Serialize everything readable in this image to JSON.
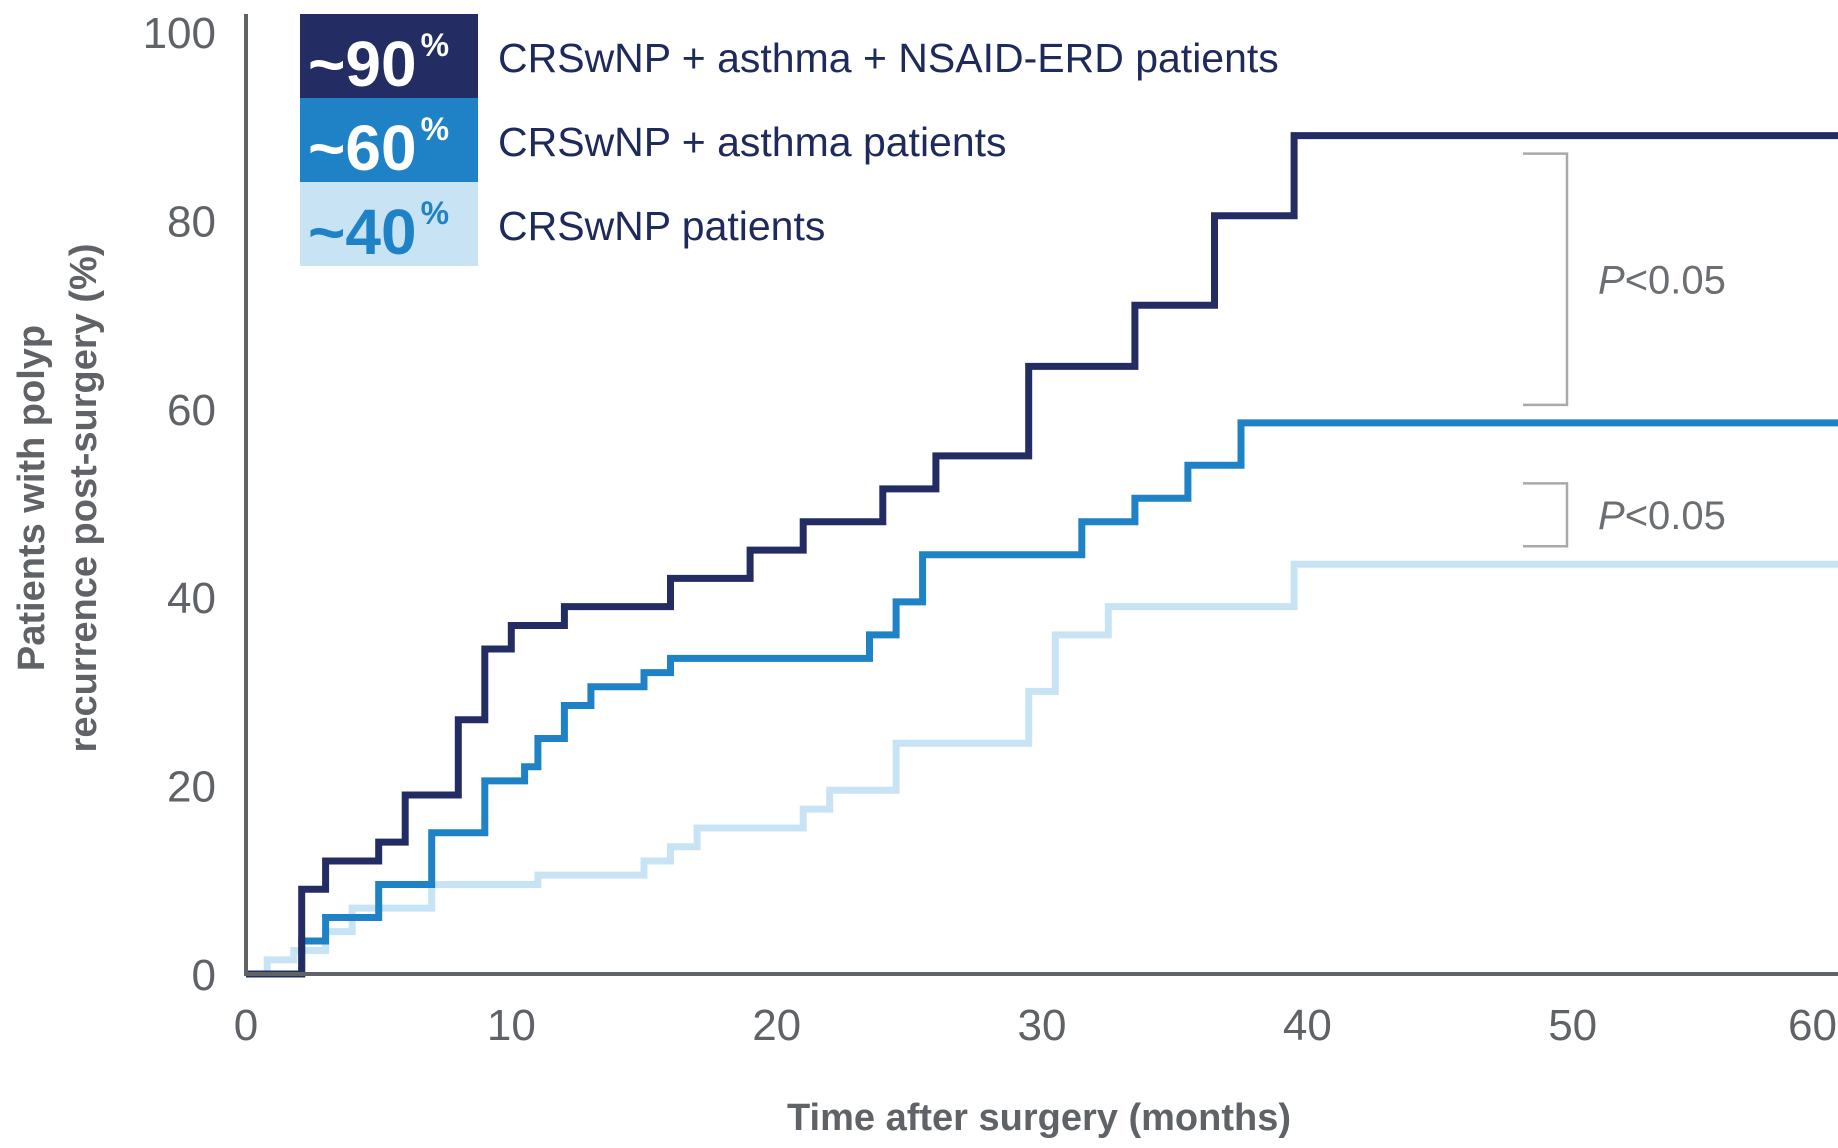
{
  "chart_data": {
    "type": "line",
    "step": true,
    "xlabel": "Time after surgery (months)",
    "ylabel_lines": [
      "Patients with polyp",
      "recurrence post-surgery (%)"
    ],
    "xlim": [
      0,
      60
    ],
    "ylim": [
      0,
      100
    ],
    "x_ticks": [
      "0",
      "10",
      "20",
      "30",
      "40",
      "50",
      "60"
    ],
    "y_ticks": [
      "0",
      "20",
      "40",
      "60",
      "80",
      "100"
    ],
    "grid": false,
    "legend_position": "top-left",
    "series": [
      {
        "name": "CRSwNP + asthma + NSAID-ERD patients",
        "badge": "~90",
        "badge_suffix": "%",
        "color": "#232d64",
        "badge_color": "#232d64",
        "points": [
          [
            0,
            0
          ],
          [
            2.1,
            0
          ],
          [
            2.1,
            9
          ],
          [
            3,
            9
          ],
          [
            3,
            12
          ],
          [
            5,
            12
          ],
          [
            5,
            14
          ],
          [
            6,
            14
          ],
          [
            6,
            19
          ],
          [
            8,
            19
          ],
          [
            8,
            27
          ],
          [
            9,
            27
          ],
          [
            9,
            34.5
          ],
          [
            10,
            34.5
          ],
          [
            10,
            37
          ],
          [
            12,
            37
          ],
          [
            12,
            39
          ],
          [
            16,
            39
          ],
          [
            16,
            42
          ],
          [
            19,
            42
          ],
          [
            19,
            45
          ],
          [
            21,
            45
          ],
          [
            21,
            48
          ],
          [
            24,
            48
          ],
          [
            24,
            51.5
          ],
          [
            26,
            51.5
          ],
          [
            26,
            55
          ],
          [
            29.5,
            55
          ],
          [
            29.5,
            64.5
          ],
          [
            33.5,
            64.5
          ],
          [
            33.5,
            71
          ],
          [
            36.5,
            71
          ],
          [
            36.5,
            80.5
          ],
          [
            39.5,
            80.5
          ],
          [
            39.5,
            89
          ],
          [
            60,
            89
          ]
        ]
      },
      {
        "name": "CRSwNP + asthma patients",
        "badge": "~60",
        "badge_suffix": "%",
        "color": "#1f82c6",
        "badge_color": "#1f82c6",
        "points": [
          [
            0,
            0
          ],
          [
            2.1,
            0
          ],
          [
            2.1,
            3.5
          ],
          [
            3,
            3.5
          ],
          [
            3,
            6
          ],
          [
            5,
            6
          ],
          [
            5,
            9.5
          ],
          [
            7,
            9.5
          ],
          [
            7,
            15
          ],
          [
            9,
            15
          ],
          [
            9,
            20.5
          ],
          [
            10.5,
            20.5
          ],
          [
            10.5,
            22
          ],
          [
            11,
            22
          ],
          [
            11,
            25
          ],
          [
            12,
            25
          ],
          [
            12,
            28.5
          ],
          [
            13,
            28.5
          ],
          [
            13,
            30.5
          ],
          [
            15,
            30.5
          ],
          [
            15,
            32
          ],
          [
            16,
            32
          ],
          [
            16,
            33.5
          ],
          [
            23.5,
            33.5
          ],
          [
            23.5,
            36
          ],
          [
            24.5,
            36
          ],
          [
            24.5,
            39.5
          ],
          [
            25.5,
            39.5
          ],
          [
            25.5,
            44.5
          ],
          [
            31.5,
            44.5
          ],
          [
            31.5,
            48
          ],
          [
            33.5,
            48
          ],
          [
            33.5,
            50.5
          ],
          [
            35.5,
            50.5
          ],
          [
            35.5,
            54
          ],
          [
            37.5,
            54
          ],
          [
            37.5,
            58.5
          ],
          [
            60,
            58.5
          ]
        ]
      },
      {
        "name": "CRSwNP patients",
        "badge": "~40",
        "badge_suffix": "%",
        "color": "#c8e4f4",
        "badge_color": "#c8e4f4",
        "points": [
          [
            0,
            0
          ],
          [
            0.8,
            0
          ],
          [
            0.8,
            1.5
          ],
          [
            1.8,
            1.5
          ],
          [
            1.8,
            2.5
          ],
          [
            3,
            2.5
          ],
          [
            3,
            4.5
          ],
          [
            4,
            4.5
          ],
          [
            4,
            7
          ],
          [
            7,
            7
          ],
          [
            7,
            9.5
          ],
          [
            11,
            9.5
          ],
          [
            11,
            10.5
          ],
          [
            15,
            10.5
          ],
          [
            15,
            12
          ],
          [
            16,
            12
          ],
          [
            16,
            13.5
          ],
          [
            17,
            13.5
          ],
          [
            17,
            15.5
          ],
          [
            21,
            15.5
          ],
          [
            21,
            17.5
          ],
          [
            22,
            17.5
          ],
          [
            22,
            19.5
          ],
          [
            24.5,
            19.5
          ],
          [
            24.5,
            24.5
          ],
          [
            29.5,
            24.5
          ],
          [
            29.5,
            30
          ],
          [
            30.5,
            30
          ],
          [
            30.5,
            36
          ],
          [
            32.5,
            36
          ],
          [
            32.5,
            39
          ],
          [
            39.5,
            39
          ],
          [
            39.5,
            43.5
          ],
          [
            60,
            43.5
          ]
        ]
      }
    ],
    "annotations": [
      {
        "text_prefix": "P",
        "text_suffix": "<0.05",
        "bracket_y": [
          89,
          58.5
        ]
      },
      {
        "text_prefix": "P",
        "text_suffix": "<0.05",
        "bracket_y": [
          54,
          43.5
        ]
      }
    ]
  }
}
